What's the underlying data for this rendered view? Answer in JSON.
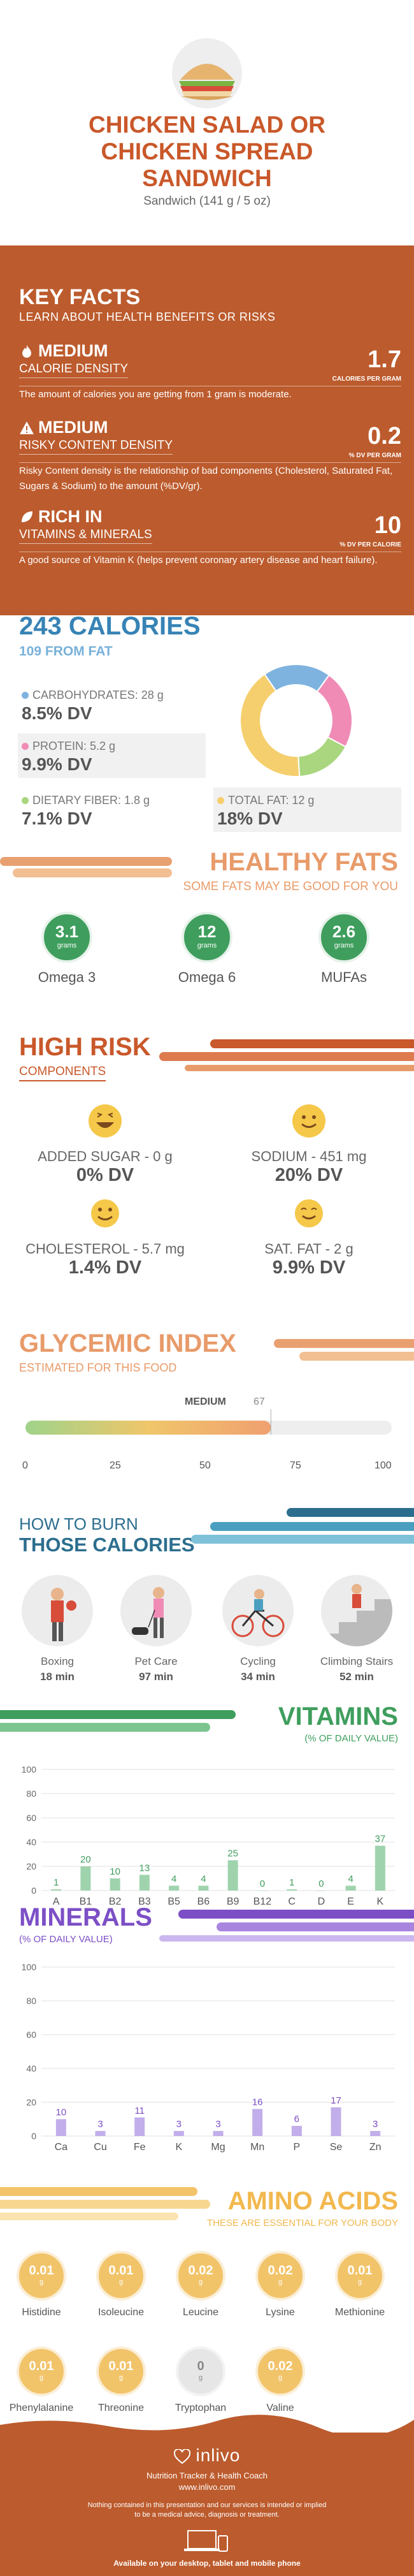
{
  "header": {
    "title_lines": [
      "CHICKEN SALAD OR",
      "CHICKEN SPREAD",
      "SANDWICH"
    ],
    "serving": "Sandwich (141 g / 5 oz)"
  },
  "key_facts": {
    "title": "KEY FACTS",
    "subtitle": "LEARN ABOUT HEALTH BENEFITS OR RISKS",
    "items": [
      {
        "level": "MEDIUM",
        "kind": "CALORIE DENSITY",
        "value": "1.7",
        "unit": "CALORIES PER GRAM",
        "desc": "The amount of calories you are getting from 1 gram is moderate."
      },
      {
        "level": "MEDIUM",
        "kind": "RISKY CONTENT DENSITY",
        "value": "0.2",
        "unit": "% DV PER GRAM",
        "desc": "Risky Content density is the relationship of bad components (Cholesterol, Saturated Fat, Sugars & Sodium) to the amount (%DV/gr)."
      },
      {
        "level": "RICH  IN",
        "kind": "VITAMINS & MINERALS",
        "value": "10",
        "unit": "% DV PER CALORIE",
        "desc": "A good source of Vitamin K (helps prevent coronary artery disease and heart failure)."
      }
    ]
  },
  "calories": {
    "title": "243 CALORIES",
    "from_fat": "109 FROM FAT",
    "macros": [
      {
        "label": "CARBOHYDRATES: 28 g",
        "dv": "8.5% DV",
        "color": "#7fb3df",
        "pct": 8.5
      },
      {
        "label": "PROTEIN: 5.2 g",
        "dv": "9.9% DV",
        "color": "#f08bb6",
        "pct": 9.9
      },
      {
        "label": "DIETARY FIBER: 1.8 g",
        "dv": "7.1% DV",
        "color": "#a9d67e",
        "pct": 7.1
      },
      {
        "label": "TOTAL FAT: 12 g",
        "dv": "18% DV",
        "color": "#f5cf6d",
        "pct": 18
      }
    ]
  },
  "healthy_fats": {
    "title": "HEALTHY FATS",
    "subtitle": "SOME FATS MAY BE GOOD FOR YOU",
    "items": [
      {
        "value": "3.1",
        "unit": "grams",
        "label": "Omega 3"
      },
      {
        "value": "12",
        "unit": "grams",
        "label": "Omega 6"
      },
      {
        "value": "2.6",
        "unit": "grams",
        "label": "MUFAs"
      }
    ]
  },
  "high_risk": {
    "title": "HIGH RISK",
    "subtitle": "COMPONENTS",
    "items": [
      {
        "label": "ADDED SUGAR - 0 g",
        "dv": "0% DV"
      },
      {
        "label": "SODIUM - 451 mg",
        "dv": "20% DV"
      },
      {
        "label": "CHOLESTEROL - 5.7 mg",
        "dv": "1.4% DV"
      },
      {
        "label": "SAT. FAT - 2 g",
        "dv": "9.9% DV"
      }
    ]
  },
  "glycemic": {
    "title": "GLYCEMIC INDEX",
    "subtitle": "ESTIMATED FOR THIS FOOD",
    "level": "MEDIUM",
    "value": "67",
    "ticks": [
      "0",
      "25",
      "50",
      "75",
      "100"
    ]
  },
  "burn": {
    "title_a": "HOW TO BURN",
    "title_b": "THOSE CALORIES",
    "items": [
      {
        "label": "Boxing",
        "time": "18 min"
      },
      {
        "label": "Pet Care",
        "time": "97 min"
      },
      {
        "label": "Cycling",
        "time": "34 min"
      },
      {
        "label": "Climbing Stairs",
        "time": "52 min"
      }
    ]
  },
  "vitamins": {
    "title": "VITAMINS",
    "subtitle": "(% OF DAILY VALUE)",
    "chart_data": {
      "type": "bar",
      "categories": [
        "A",
        "B1",
        "B2",
        "B3",
        "B5",
        "B6",
        "B9",
        "B12",
        "C",
        "D",
        "E",
        "K"
      ],
      "values": [
        1,
        20,
        10,
        13,
        4,
        4,
        25,
        0,
        1,
        0,
        4,
        37
      ],
      "ylim": [
        0,
        100
      ],
      "yticks": [
        "0",
        "20",
        "40",
        "60",
        "80",
        "100"
      ]
    }
  },
  "minerals": {
    "title": "MINERALS",
    "subtitle": "(% OF DAILY VALUE)",
    "chart_data": {
      "type": "bar",
      "categories": [
        "Ca",
        "Cu",
        "Fe",
        "K",
        "Mg",
        "Mn",
        "P",
        "Se",
        "Zn"
      ],
      "values": [
        10,
        3,
        11,
        3,
        3,
        16,
        6,
        17,
        3
      ],
      "ylim": [
        0,
        100
      ],
      "yticks": [
        "0",
        "20",
        "40",
        "60",
        "80",
        "100"
      ]
    }
  },
  "amino": {
    "title": "AMINO ACIDS",
    "subtitle": "THESE ARE ESSENTIAL FOR YOUR BODY",
    "items": [
      {
        "value": "0.01",
        "unit": "g",
        "label": "Histidine"
      },
      {
        "value": "0.01",
        "unit": "g",
        "label": "Isoleucine"
      },
      {
        "value": "0.02",
        "unit": "g",
        "label": "Leucine"
      },
      {
        "value": "0.02",
        "unit": "g",
        "label": "Lysine"
      },
      {
        "value": "0.01",
        "unit": "g",
        "label": "Methionine"
      },
      {
        "value": "0.01",
        "unit": "g",
        "label": "Phenylalanine"
      },
      {
        "value": "0.01",
        "unit": "g",
        "label": "Threonine"
      },
      {
        "value": "0",
        "unit": "g",
        "label": "Tryptophan"
      },
      {
        "value": "0.02",
        "unit": "g",
        "label": "Valine"
      }
    ]
  },
  "footer": {
    "brand": "inlivo",
    "tagline": "Nutrition Tracker & Health Coach",
    "url": "www.inlivo.com",
    "disclaimer_1": "Nothing contained in this presentation and our services is intended or implied",
    "disclaimer_2": "to be a medical advice, diagnosis or treatment.",
    "available": "Available on your desktop, tablet and mobile phone"
  }
}
